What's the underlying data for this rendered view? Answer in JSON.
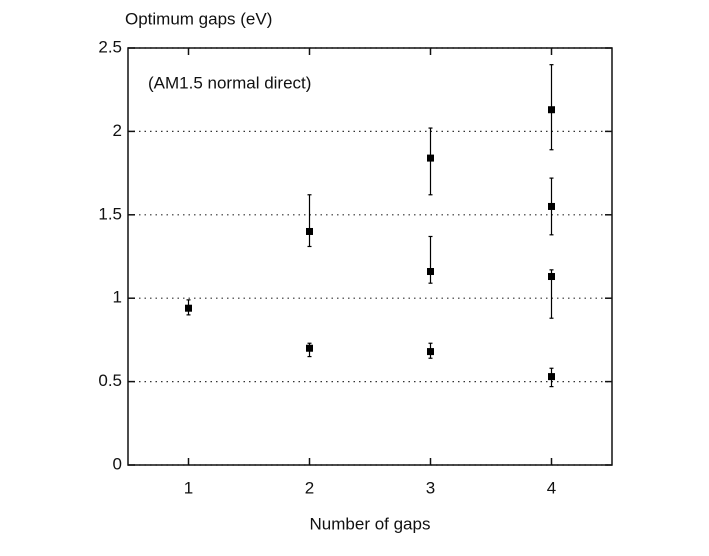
{
  "chart_data": {
    "type": "scatter",
    "ylabel": "Optimum gaps (eV)",
    "xlabel": "Number of gaps",
    "annotation": "(AM1.5 normal direct)",
    "x": [
      1,
      2,
      2,
      3,
      3,
      3,
      4,
      4,
      4,
      4
    ],
    "values": [
      0.94,
      1.4,
      0.7,
      1.84,
      1.16,
      0.68,
      2.13,
      1.55,
      1.13,
      0.53
    ],
    "yerr_minus": [
      0.04,
      0.09,
      0.05,
      0.22,
      0.07,
      0.04,
      0.24,
      0.17,
      0.25,
      0.06
    ],
    "yerr_plus": [
      0.05,
      0.22,
      0.03,
      0.18,
      0.21,
      0.05,
      0.27,
      0.17,
      0.04,
      0.05
    ],
    "color": "#000000",
    "xlim": [
      0.5,
      4.5
    ],
    "xticks": [
      1,
      2,
      3,
      4
    ],
    "ylim": [
      0,
      2.5
    ],
    "yticks": [
      0,
      0.5,
      1,
      1.5,
      2,
      2.5
    ],
    "grid": true
  }
}
